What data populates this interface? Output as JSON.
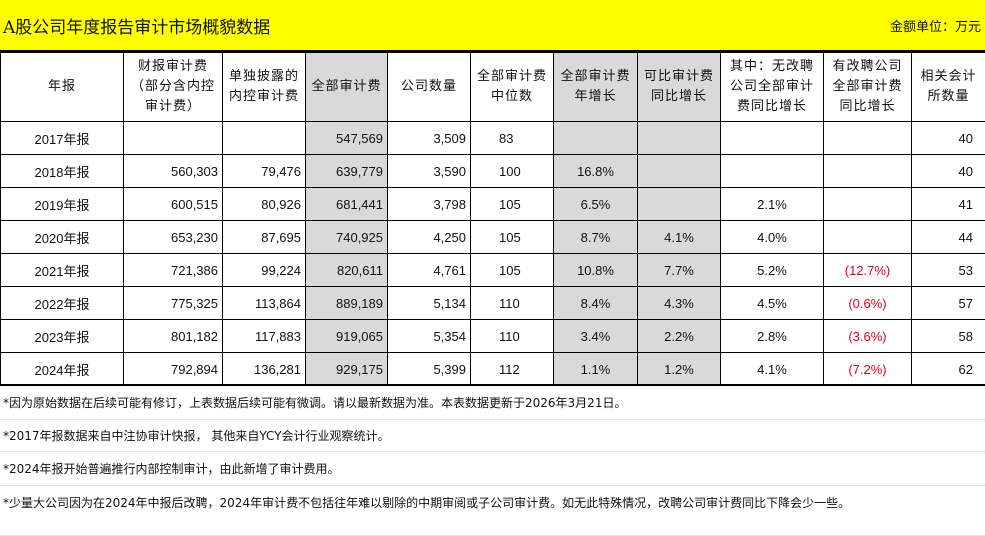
{
  "title": "A股公司年度报告审计市场概貌数据",
  "unit": "金额单位：万元",
  "columns": [
    "年报",
    "财报审计费（部分含内控审计费）",
    "单独披露的内控审计费",
    "全部审计费",
    "公司数量",
    "全部审计费中位数",
    "全部审计费年增长",
    "可比审计费同比增长",
    "其中：无改聘公司全部审计费同比增长",
    "有改聘公司全部审计费同比增长",
    "相关会计所数量"
  ],
  "rows": [
    [
      "2017年报",
      "",
      "",
      "547,569",
      "3,509",
      "83",
      "",
      "",
      "",
      "",
      "40"
    ],
    [
      "2018年报",
      "560,303",
      "79,476",
      "639,779",
      "3,590",
      "100",
      "16.8%",
      "",
      "",
      "",
      "40"
    ],
    [
      "2019年报",
      "600,515",
      "80,926",
      "681,441",
      "3,798",
      "105",
      "6.5%",
      "",
      "2.1%",
      "",
      "41"
    ],
    [
      "2020年报",
      "653,230",
      "87,695",
      "740,925",
      "4,250",
      "105",
      "8.7%",
      "4.1%",
      "4.0%",
      "",
      "44"
    ],
    [
      "2021年报",
      "721,386",
      "99,224",
      "820,611",
      "4,761",
      "105",
      "10.8%",
      "7.7%",
      "5.2%",
      "(12.7%)",
      "53"
    ],
    [
      "2022年报",
      "775,325",
      "113,864",
      "889,189",
      "5,134",
      "110",
      "8.4%",
      "4.3%",
      "4.5%",
      "(0.6%)",
      "57"
    ],
    [
      "2023年报",
      "801,182",
      "117,883",
      "919,065",
      "5,354",
      "110",
      "3.4%",
      "2.2%",
      "2.8%",
      "(3.6%)",
      "58"
    ],
    [
      "2024年报",
      "792,894",
      "136,281",
      "929,175",
      "5,399",
      "112",
      "1.1%",
      "1.2%",
      "4.1%",
      "(7.2%)",
      "62"
    ]
  ],
  "notes": [
    "*因为原始数据在后续可能有修订，上表数据后续可能有微调。请以最新数据为准。本表数据更新于2026年3月21日。",
    "*2017年报数据来自中注协审计快报， 其他来自YCY会计行业观察统计。",
    "*2024年报开始普遍推行内部控制审计，由此新增了审计费用。",
    "*少量大公司因为在2024年中报后改聘，2024年审计费不包括往年难以剔除的中期审阅或子公司审计费。如无此特殊情况，改聘公司审计费同比下降会少一些。"
  ],
  "colors": {
    "title_bg": "#ffff00",
    "shaded": "#d9d9d9",
    "negative": "#e0001b"
  }
}
